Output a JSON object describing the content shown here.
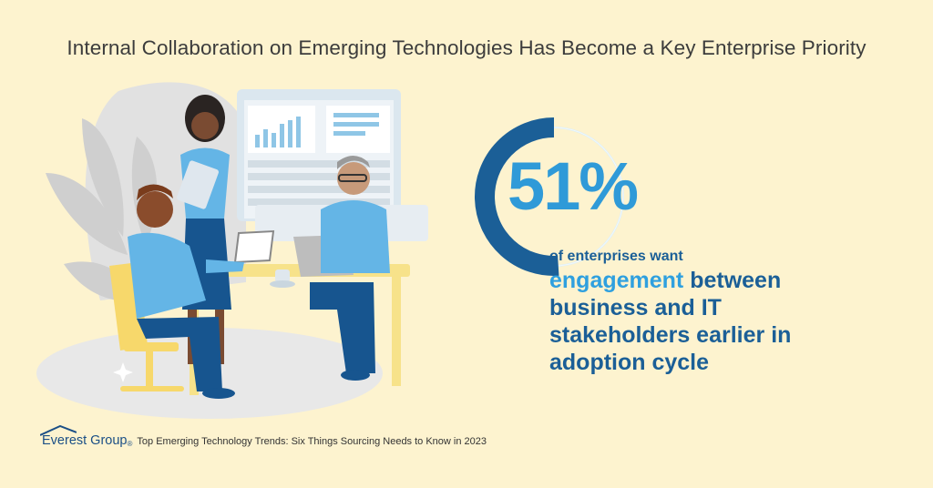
{
  "title": "Internal Collaboration on Emerging Technologies Has Become a Key Enterprise Priority",
  "stat": {
    "value": "51%",
    "percent": 51,
    "line1": "of enterprises want",
    "highlight": "engagement",
    "rest_line2": " between",
    "line3": "business and IT",
    "line4": "stakeholders earlier in",
    "line5": "adoption cycle"
  },
  "footer": {
    "brand": "Everest Group",
    "registered": "®",
    "caption": "Top Emerging Technology Trends: Six Things Sourcing Needs to Know in 2023"
  },
  "colors": {
    "background": "#fdf3cf",
    "ring_filled": "#1b5f97",
    "ring_empty": "#dbeef6",
    "number": "#2f9ad8",
    "text": "#1b5f97",
    "highlight": "#2fa0df"
  },
  "illustration": "three-people-collaborating-at-desk"
}
